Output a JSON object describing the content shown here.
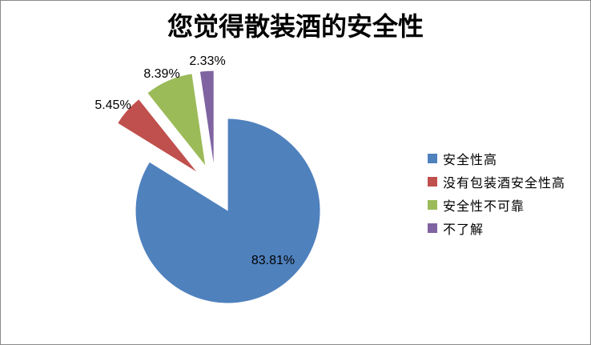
{
  "title": "您觉得散装酒的安全性",
  "chart_data": {
    "type": "pie",
    "title": "您觉得散装酒的安全性",
    "categories": [
      "安全性高",
      "没有包装酒安全性高",
      "安全性不可靠",
      "不了解"
    ],
    "values": [
      83.81,
      5.45,
      8.39,
      2.33
    ],
    "value_labels": [
      "83.81%",
      "5.45%",
      "8.39%",
      "2.33%"
    ],
    "colors": [
      "#4F81BD",
      "#C0504D",
      "#9BBB59",
      "#8064A2"
    ],
    "legend_position": "right",
    "style": "exploded",
    "start_angle_deg": 0,
    "direction": "clockwise",
    "background": "#FFFFFF",
    "border_color": "#8A8A8A",
    "grid": false
  }
}
